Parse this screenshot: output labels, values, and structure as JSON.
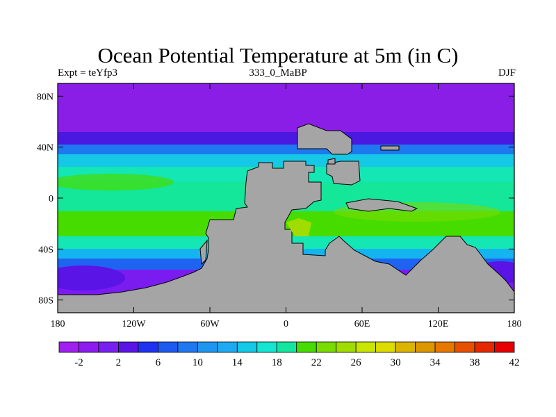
{
  "title": "Ocean Potential Temperature at 5m (in C)",
  "subtitle_left": "Expt = teYfp3",
  "subtitle_center": "333_0_MaBP",
  "subtitle_right": "DJF",
  "map": {
    "lon_range": [
      -180,
      180
    ],
    "lat_range": [
      -90,
      90
    ],
    "x_ticks": [
      {
        "value": -180,
        "label": "180"
      },
      {
        "value": -120,
        "label": "120W"
      },
      {
        "value": -60,
        "label": "60W"
      },
      {
        "value": 0,
        "label": "0"
      },
      {
        "value": 60,
        "label": "60E"
      },
      {
        "value": 120,
        "label": "120E"
      },
      {
        "value": 180,
        "label": "180"
      }
    ],
    "y_ticks": [
      {
        "value": 80,
        "label": "80N"
      },
      {
        "value": 40,
        "label": "40N"
      },
      {
        "value": 0,
        "label": "0"
      },
      {
        "value": -40,
        "label": "40S"
      },
      {
        "value": -80,
        "label": "80S"
      }
    ]
  },
  "colorbar": {
    "colors": [
      "#a020f0",
      "#8c1cf0",
      "#7820f0",
      "#5a14e6",
      "#1e32f0",
      "#1e5af0",
      "#1e78f0",
      "#1e96f0",
      "#1eaaf0",
      "#14c8e6",
      "#14e6d2",
      "#14e6a0",
      "#46dc00",
      "#78dc00",
      "#a0dc00",
      "#c8e600",
      "#dcdc00",
      "#dcb400",
      "#dc9600",
      "#e67800",
      "#e65000",
      "#e62800",
      "#e60000"
    ],
    "labels": [
      "-2",
      "2",
      "6",
      "10",
      "14",
      "18",
      "22",
      "26",
      "30",
      "34",
      "38",
      "42"
    ]
  },
  "chart_data": {
    "type": "heatmap",
    "title": "Ocean Potential Temperature at 5m (in C)",
    "units": "C",
    "levels": [
      -4,
      -2,
      0,
      2,
      4,
      6,
      8,
      10,
      12,
      14,
      16,
      18,
      20,
      22,
      24,
      26,
      28,
      30,
      32,
      34,
      36,
      38,
      40,
      42
    ],
    "zonal_bands": [
      {
        "lat_from": 90,
        "lat_to": 52,
        "temperature": -2
      },
      {
        "lat_from": 52,
        "lat_to": 42,
        "temperature": 5
      },
      {
        "lat_from": 42,
        "lat_to": 34,
        "temperature": 12
      },
      {
        "lat_from": 34,
        "lat_to": 24,
        "temperature": 17
      },
      {
        "lat_from": 24,
        "lat_to": 12,
        "temperature": 21
      },
      {
        "lat_from": 12,
        "lat_to": -10,
        "temperature": 24
      },
      {
        "lat_from": -10,
        "lat_to": -30,
        "temperature": 26
      },
      {
        "lat_from": -30,
        "lat_to": -40,
        "temperature": 22
      },
      {
        "lat_from": -40,
        "lat_to": -48,
        "temperature": 16
      },
      {
        "lat_from": -48,
        "lat_to": -56,
        "temperature": 10
      },
      {
        "lat_from": -56,
        "lat_to": -64,
        "temperature": 4
      },
      {
        "lat_from": -64,
        "lat_to": -90,
        "temperature": 0
      }
    ],
    "land_value": "missing (grey)"
  }
}
